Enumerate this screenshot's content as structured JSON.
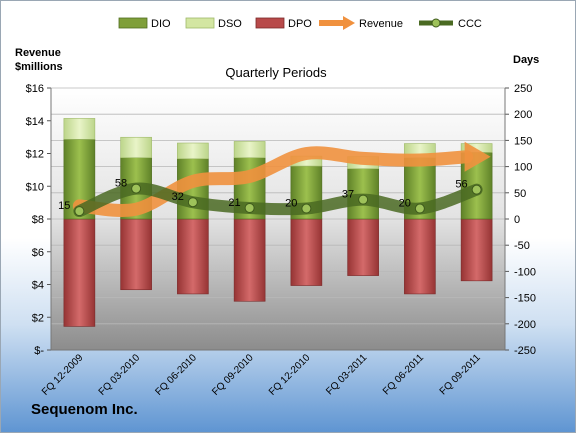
{
  "chart_data": {
    "type": "bar",
    "title": "Quarterly Periods",
    "company": "Sequenom Inc.",
    "ylabel_left": "Revenue\n$millions",
    "ylabel_right": "Days",
    "left_axis": {
      "range": [
        0,
        16
      ],
      "ticks": [
        0,
        2,
        4,
        6,
        8,
        10,
        12,
        14,
        16
      ],
      "tick_labels": [
        "$-",
        "$2",
        "$4",
        "$6",
        "$8",
        "$10",
        "$12",
        "$14",
        "$16"
      ]
    },
    "right_axis": {
      "range": [
        -250,
        250
      ],
      "ticks": [
        -250,
        -200,
        -150,
        -100,
        -50,
        0,
        50,
        100,
        150,
        200,
        250
      ]
    },
    "categories": [
      "FQ 12-2009",
      "FQ 03-2010",
      "FQ 06-2010",
      "FQ 09-2010",
      "FQ 12-2010",
      "FQ 03-2011",
      "FQ 06-2011",
      "FQ 09-2011"
    ],
    "legend": [
      "DIO",
      "DSO",
      "DPO",
      "Revenue",
      "CCC"
    ],
    "series": [
      {
        "name": "DIO",
        "axis": "right",
        "color": "#7f9f3a",
        "values": [
          152,
          117,
          115,
          117,
          101,
          96,
          117,
          127
        ]
      },
      {
        "name": "DSO",
        "axis": "right",
        "color": "#d3e6a2",
        "values": [
          40,
          39,
          30,
          31,
          19,
          23,
          27,
          17
        ]
      },
      {
        "name": "DPO",
        "axis": "right",
        "color": "#b84a4a",
        "values": [
          -205,
          -135,
          -143,
          -157,
          -127,
          -108,
          -143,
          -118
        ]
      },
      {
        "name": "Revenue",
        "axis": "left",
        "color": "#f0913e",
        "values": [
          8.8,
          8.6,
          10.3,
          10.6,
          12.0,
          11.7,
          11.6,
          11.8
        ]
      },
      {
        "name": "CCC",
        "axis": "right",
        "color": "#4a6a22",
        "values": [
          15,
          58,
          32,
          21,
          20,
          37,
          20,
          56
        ],
        "labels": [
          "15",
          "58",
          "32",
          "21",
          "20",
          "37",
          "20",
          "56"
        ]
      }
    ]
  }
}
